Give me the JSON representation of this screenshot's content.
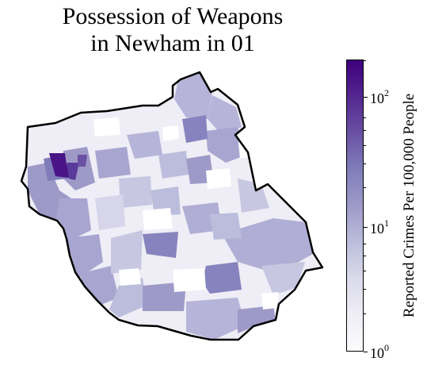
{
  "title": {
    "line1": "Possession of Weapons",
    "line2": "in Newham in 01"
  },
  "colorbar": {
    "label": "Reported Crimes Per 100,000 People",
    "scale": "log",
    "range": [
      1,
      200
    ],
    "ticks": [
      {
        "base": "10",
        "exp": "0",
        "value": 1
      },
      {
        "base": "10",
        "exp": "1",
        "value": 10
      },
      {
        "base": "10",
        "exp": "2",
        "value": 100
      }
    ],
    "colormap": "Purples",
    "colors": [
      "#fcfbfd",
      "#efedf5",
      "#dadaeb",
      "#bcbddc",
      "#9e9ac8",
      "#807dba",
      "#6a51a3",
      "#54278f",
      "#3f007d"
    ]
  },
  "map": {
    "region": "Newham",
    "boundary_color": "#000000",
    "highest_area_color": "#4a1486"
  }
}
